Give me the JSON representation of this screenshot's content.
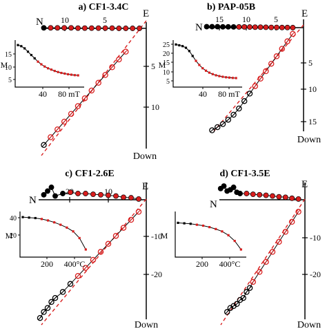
{
  "colors": {
    "red": "#d81e1e",
    "black": "#000000",
    "dashed": "#d81e1e"
  },
  "panels": [
    {
      "title": "a) CF1-3.4C",
      "axes": {
        "north": "N",
        "east": "E",
        "down": "Down"
      },
      "horizontal_ticks": [
        "10",
        "5"
      ],
      "vertical_ticks": [
        "5",
        "10"
      ],
      "inset": {
        "ylabel": "M",
        "yticks": [
          "15",
          "10",
          "5"
        ],
        "xticks": [
          "40",
          "80 mT"
        ]
      }
    },
    {
      "title": "b) PAP-05B",
      "axes": {
        "north": "N",
        "east": "E",
        "down": "Down"
      },
      "horizontal_ticks": [
        "15",
        "10",
        "5"
      ],
      "vertical_ticks": [
        "5",
        "10",
        "15"
      ],
      "inset": {
        "ylabel": "M",
        "yticks": [
          "25",
          "20",
          "15",
          "10",
          "5"
        ],
        "xticks": [
          "40",
          "80 mT"
        ]
      }
    },
    {
      "title": "c) CF1-2.6E",
      "axes": {
        "north": "N",
        "east": "E",
        "down": "Down"
      },
      "horizontal_ticks": [
        "20",
        "10"
      ],
      "vertical_ticks": [
        "-10",
        "-20"
      ],
      "inset": {
        "ylabel": "M",
        "yticks": [
          "40",
          "20"
        ],
        "xticks": [
          "200",
          "400°C"
        ]
      }
    },
    {
      "title": "d) CF1-3.5E",
      "axes": {
        "north": "N",
        "east": "E",
        "down": "Down"
      },
      "horizontal_ticks": [],
      "vertical_ticks": [
        "-10",
        "-20"
      ],
      "inset": {
        "ylabel": "M",
        "yticks": [],
        "xticks": [
          "200",
          "400°C"
        ]
      }
    }
  ],
  "chart_data": [
    {
      "type": "scatter",
      "title": "a) CF1-3.4C",
      "horizontal_projection": {
        "x": [
          -15,
          -14,
          -13,
          -12,
          -11,
          -10,
          -9,
          -8,
          -7,
          -6,
          -5,
          -4,
          -3,
          -2,
          -1
        ],
        "y": [
          0.2,
          0.2,
          0.2,
          0.2,
          0.2,
          0.1,
          0.1,
          0.1,
          0.1,
          0.1,
          0.1,
          0.0,
          0.0,
          0.0,
          0.0
        ]
      },
      "vertical_projection": {
        "x": [
          -15,
          -14,
          -13,
          -12,
          -11,
          -10,
          -9,
          -8,
          -7,
          -6,
          -5,
          -4,
          -3
        ],
        "down": [
          13.5,
          12.6,
          11.7,
          10.8,
          9.9,
          9.0,
          8.1,
          7.2,
          6.3,
          5.4,
          4.5,
          3.6,
          2.7
        ]
      },
      "inset": {
        "x": [
          0,
          5,
          10,
          15,
          20,
          25,
          30,
          35,
          40,
          45,
          50,
          55,
          60,
          65,
          70,
          75,
          80,
          85,
          90
        ],
        "y": [
          19,
          18.5,
          17.5,
          16,
          14.5,
          13,
          11.5,
          10.3,
          9.3,
          8.5,
          7.9,
          7.3,
          6.8,
          6.4,
          6.1,
          5.8,
          5.6,
          5.4,
          5.3
        ]
      }
    },
    {
      "type": "scatter",
      "title": "b) PAP-05B",
      "horizontal_projection": {
        "x": [
          -18,
          -17,
          -16,
          -15,
          -14,
          -13,
          -12,
          -11,
          -10,
          -9,
          -8,
          -7,
          -6,
          -5,
          -4,
          -3,
          -2
        ],
        "y": [
          0.4,
          0.4,
          0.4,
          0.35,
          0.35,
          0.3,
          0.3,
          0.3,
          0.25,
          0.2,
          0.2,
          0.15,
          0.1,
          0.1,
          0.05,
          0.05,
          0.0
        ]
      },
      "vertical_projection": {
        "x": [
          -17,
          -16,
          -15,
          -14,
          -13,
          -12,
          -11,
          -10,
          -9,
          -8,
          -7,
          -6,
          -5,
          -4,
          -3,
          -2
        ],
        "down": [
          16.5,
          16,
          15.5,
          14.8,
          14,
          13,
          11.8,
          10.6,
          9.4,
          8.2,
          7.0,
          5.8,
          4.6,
          3.4,
          2.2,
          1.0
        ]
      },
      "inset": {
        "x": [
          0,
          5,
          10,
          15,
          20,
          25,
          30,
          35,
          40,
          45,
          50,
          55,
          60,
          65,
          70,
          75,
          80,
          85,
          90
        ],
        "y": [
          26,
          25.5,
          25,
          24,
          22,
          19,
          16,
          13.5,
          11.5,
          10,
          8.8,
          7.9,
          7.2,
          6.7,
          6.3,
          6.0,
          5.8,
          5.6,
          5.5
        ]
      }
    },
    {
      "type": "scatter",
      "title": "c) CF1-2.6E",
      "horizontal_projection": {
        "x": [
          -27,
          -26,
          -25,
          -24,
          -22,
          -20,
          -18,
          -16,
          -14,
          -12,
          -10,
          -8,
          -6,
          -4,
          -2
        ],
        "y": [
          2,
          3.5,
          5,
          1.5,
          2.5,
          3,
          2.5,
          2.5,
          2.2,
          2,
          1.8,
          1.5,
          1.0,
          0.8,
          0.3
        ]
      },
      "vertical_projection": {
        "x": [
          -28,
          -27,
          -26,
          -25,
          -24,
          -22,
          -20,
          -18,
          -16,
          -14,
          -12,
          -10,
          -8,
          -6,
          -4,
          -2
        ],
        "down": [
          29.5,
          28,
          27,
          25.5,
          24.5,
          23,
          21,
          19,
          17,
          15,
          13,
          11,
          9,
          7,
          5,
          3
        ]
      },
      "inset": {
        "x": [
          0,
          50,
          100,
          150,
          200,
          250,
          300,
          350,
          400,
          450,
          500
        ],
        "y": [
          42,
          41.5,
          41,
          40,
          38.5,
          36.5,
          34,
          31,
          27,
          20,
          8
        ]
      }
    },
    {
      "type": "scatter",
      "title": "d) CF1-3.5E",
      "horizontal_projection": {
        "x": [
          -26,
          -25,
          -24,
          -23,
          -22,
          -21,
          -20,
          -18,
          -16,
          -14,
          -12,
          -10,
          -8,
          -6,
          -4,
          -2
        ],
        "y": [
          4.5,
          5.5,
          3.5,
          4,
          5,
          3,
          2.5,
          2.5,
          2.2,
          2,
          1.8,
          1.5,
          1.2,
          1.0,
          0.6,
          0.3
        ]
      },
      "vertical_projection": {
        "x": [
          -24,
          -23,
          -22,
          -21,
          -20,
          -19,
          -18,
          -17,
          -16,
          -14,
          -12,
          -10,
          -8,
          -6,
          -4,
          -2
        ],
        "down": [
          28,
          27,
          26.5,
          26,
          25,
          24.5,
          23,
          22,
          20.5,
          18,
          15.5,
          13,
          10.5,
          8,
          5.5,
          3
        ]
      },
      "inset": {
        "x": [
          0,
          50,
          100,
          150,
          200,
          250,
          300,
          350,
          400,
          450,
          500
        ],
        "y": [
          36,
          35.5,
          35,
          34,
          33,
          31.5,
          29.5,
          27,
          23,
          17,
          8
        ]
      }
    }
  ]
}
